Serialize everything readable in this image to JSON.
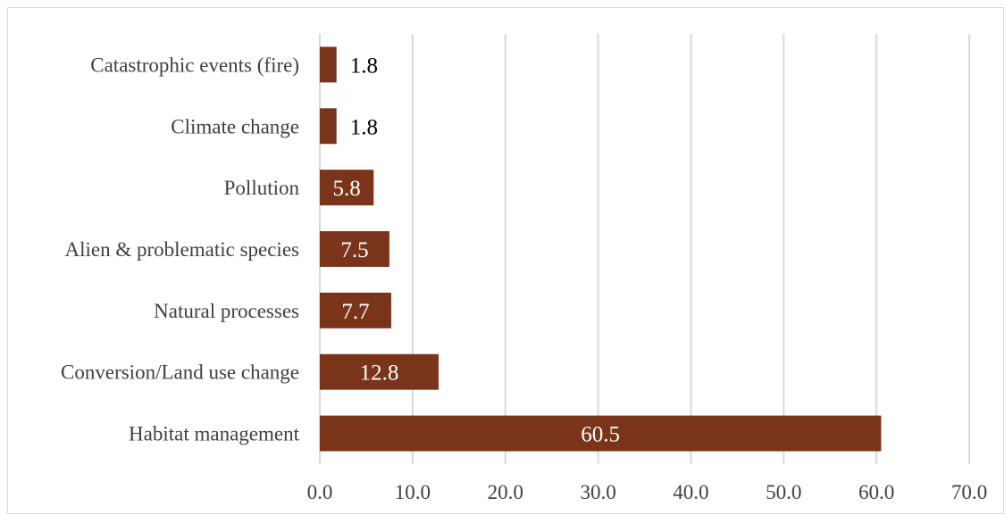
{
  "chart_data": {
    "type": "bar",
    "orientation": "horizontal",
    "categories": [
      "Catastrophic events (fire)",
      "Climate change",
      "Pollution",
      "Alien & problematic species",
      "Natural processes",
      "Conversion/Land use change",
      "Habitat management"
    ],
    "values": [
      1.8,
      1.8,
      5.8,
      7.5,
      7.7,
      12.8,
      60.5
    ],
    "data_labels": [
      "1.8",
      "1.8",
      "5.8",
      "7.5",
      "7.7",
      "12.8",
      "60.5"
    ],
    "xlim": [
      0,
      70
    ],
    "x_ticks": [
      "0.0",
      "10.0",
      "20.0",
      "30.0",
      "40.0",
      "50.0",
      "60.0",
      "70.0"
    ],
    "title": "",
    "xlabel": "",
    "ylabel": "",
    "grid": "vertical",
    "legend": "none",
    "colors": {
      "bar": "#7a3419",
      "grid": "#d9d9d9",
      "text": "#404040",
      "label_dark": "#000000",
      "label_light": "#ffffff"
    }
  }
}
